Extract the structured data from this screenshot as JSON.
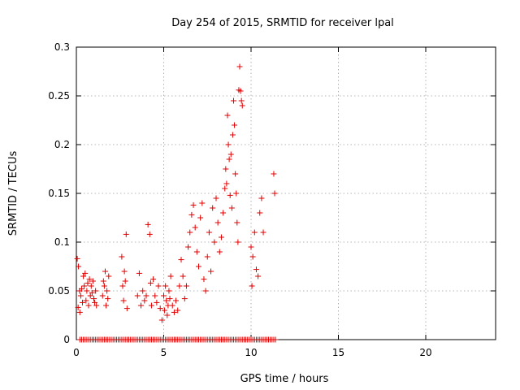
{
  "chart_data": {
    "type": "scatter",
    "title": "Day 254 of 2015, SRMTID for receiver lpal",
    "xlabel": "GPS time / hours",
    "ylabel": "SRMTID / TECUs",
    "xlim": [
      0,
      24
    ],
    "ylim": [
      0,
      0.3
    ],
    "xticks": [
      0,
      5,
      10,
      15,
      20
    ],
    "xtick_labels": [
      "0",
      "5",
      "10",
      "15",
      "20"
    ],
    "yticks": [
      0,
      0.05,
      0.1,
      0.15,
      0.2,
      0.25,
      0.3
    ],
    "ytick_labels": [
      "0",
      "0.05",
      "0.1",
      "0.15",
      "0.2",
      "0.25",
      "0.3"
    ],
    "grid": true,
    "marker": "+",
    "color": "#e00000",
    "series": [
      {
        "name": "SRMTID",
        "x": [
          0.05,
          0.1,
          0.12,
          0.18,
          0.2,
          0.25,
          0.3,
          0.35,
          0.4,
          0.45,
          0.5,
          0.55,
          0.6,
          0.65,
          0.7,
          0.75,
          0.8,
          0.85,
          0.9,
          0.95,
          1.0,
          1.05,
          1.1,
          1.15,
          1.5,
          1.55,
          1.6,
          1.65,
          1.7,
          1.75,
          1.8,
          1.85,
          2.6,
          2.65,
          2.7,
          2.75,
          2.8,
          2.85,
          2.9,
          3.5,
          3.6,
          3.7,
          3.8,
          3.9,
          4.0,
          4.1,
          4.2,
          4.25,
          4.3,
          4.4,
          4.5,
          4.6,
          4.7,
          4.8,
          4.9,
          5.0,
          5.05,
          5.1,
          5.15,
          5.2,
          5.25,
          5.3,
          5.35,
          5.4,
          5.5,
          5.6,
          5.7,
          5.8,
          5.9,
          6.0,
          6.1,
          6.2,
          6.3,
          6.4,
          6.5,
          6.6,
          6.7,
          6.8,
          6.9,
          7.0,
          7.1,
          7.2,
          7.3,
          7.4,
          7.5,
          7.6,
          7.7,
          7.8,
          7.9,
          8.0,
          8.1,
          8.2,
          8.3,
          8.4,
          8.5,
          8.55,
          8.6,
          8.65,
          8.7,
          8.75,
          8.8,
          8.85,
          8.9,
          8.95,
          9.0,
          9.05,
          9.1,
          9.15,
          9.2,
          9.25,
          9.3,
          9.35,
          9.4,
          9.45,
          9.5,
          10.0,
          10.05,
          10.1,
          10.2,
          10.3,
          10.4,
          10.5,
          10.6,
          10.7,
          11.3,
          11.35
        ],
        "y": [
          0.083,
          0.033,
          0.075,
          0.05,
          0.028,
          0.045,
          0.052,
          0.038,
          0.065,
          0.055,
          0.068,
          0.04,
          0.05,
          0.058,
          0.035,
          0.062,
          0.045,
          0.055,
          0.048,
          0.06,
          0.042,
          0.038,
          0.05,
          0.035,
          0.045,
          0.06,
          0.055,
          0.07,
          0.035,
          0.05,
          0.042,
          0.065,
          0.085,
          0.055,
          0.04,
          0.07,
          0.06,
          0.108,
          0.032,
          0.045,
          0.068,
          0.035,
          0.05,
          0.04,
          0.045,
          0.118,
          0.108,
          0.058,
          0.035,
          0.062,
          0.045,
          0.038,
          0.055,
          0.032,
          0.02,
          0.045,
          0.03,
          0.055,
          0.04,
          0.025,
          0.035,
          0.05,
          0.042,
          0.065,
          0.035,
          0.028,
          0.04,
          0.03,
          0.055,
          0.082,
          0.065,
          0.042,
          0.055,
          0.095,
          0.11,
          0.128,
          0.138,
          0.115,
          0.09,
          0.075,
          0.125,
          0.14,
          0.062,
          0.05,
          0.085,
          0.11,
          0.07,
          0.135,
          0.1,
          0.145,
          0.12,
          0.09,
          0.105,
          0.13,
          0.155,
          0.175,
          0.16,
          0.23,
          0.2,
          0.185,
          0.148,
          0.19,
          0.135,
          0.21,
          0.245,
          0.22,
          0.17,
          0.15,
          0.12,
          0.1,
          0.256,
          0.28,
          0.255,
          0.245,
          0.24,
          0.095,
          0.055,
          0.085,
          0.11,
          0.072,
          0.065,
          0.13,
          0.145,
          0.11,
          0.17,
          0.15
        ]
      }
    ],
    "zero_band_x": [
      0.2,
      0.3,
      0.4,
      0.5,
      0.6,
      0.7,
      0.8,
      0.9,
      1.0,
      1.1,
      1.2,
      1.3,
      1.4,
      1.5,
      1.6,
      1.7,
      1.8,
      1.9,
      2.0,
      2.1,
      2.2,
      2.3,
      2.4,
      2.5,
      2.6,
      2.7,
      2.8,
      2.9,
      3.0,
      3.1,
      3.2,
      3.3,
      3.4,
      3.5,
      3.6,
      3.7,
      3.8,
      3.9,
      4.0,
      4.1,
      4.2,
      4.3,
      4.4,
      4.5,
      4.6,
      4.7,
      4.8,
      4.9,
      5.0,
      5.1,
      5.2,
      5.3,
      5.4,
      5.5,
      5.6,
      5.7,
      5.8,
      5.9,
      6.0,
      6.1,
      6.2,
      6.3,
      6.4,
      6.5,
      6.6,
      6.7,
      6.8,
      6.9,
      7.0,
      7.1,
      7.2,
      7.3,
      7.4,
      7.5,
      7.6,
      7.7,
      7.8,
      7.9,
      8.0,
      8.1,
      8.2,
      8.3,
      8.4,
      8.5,
      8.6,
      8.7,
      8.8,
      8.9,
      9.0,
      9.1,
      9.2,
      9.3,
      9.4,
      9.5,
      9.6,
      9.7,
      9.8,
      9.9,
      10.0,
      10.1,
      10.2,
      10.3,
      10.4,
      10.5,
      10.6,
      10.7,
      10.8,
      10.9,
      11.0,
      11.1,
      11.2,
      11.3,
      11.4
    ]
  }
}
